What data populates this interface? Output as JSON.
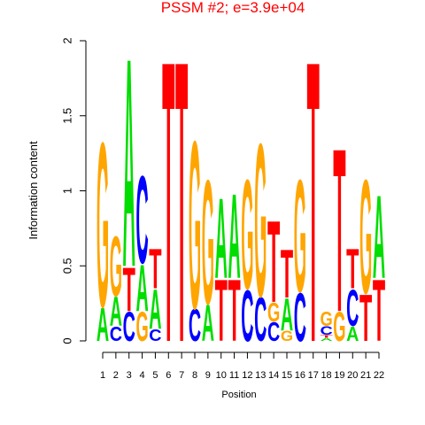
{
  "chart_data": {
    "type": "logo",
    "title": "PSSM #2; e=3.9e+04",
    "x_label": "Position",
    "y_label": "Information content",
    "title_color": "#ff0000",
    "categories": [
      "1",
      "2",
      "3",
      "4",
      "5",
      "6",
      "7",
      "8",
      "9",
      "10",
      "11",
      "12",
      "13",
      "14",
      "15",
      "16",
      "17",
      "18",
      "19",
      "20",
      "21",
      "22"
    ],
    "ylim": [
      0,
      2
    ],
    "yticks": [
      0,
      0.5,
      1,
      1.5,
      2
    ],
    "series": [
      {
        "name": "A",
        "color": "#00dd00",
        "values": [
          0.23,
          0.2,
          1.43,
          0.32,
          0.27,
          0,
          0,
          0,
          0.25,
          0.55,
          0.58,
          0,
          0,
          0,
          0.22,
          0,
          0,
          0.02,
          0,
          0.1,
          0,
          0.57
        ]
      },
      {
        "name": "C",
        "color": "#0000ff",
        "values": [
          0,
          0.1,
          0.2,
          0.6,
          0.08,
          0,
          0,
          0.22,
          0,
          0,
          0,
          0.35,
          0.3,
          0.13,
          0,
          0.33,
          0,
          0.06,
          0,
          0.25,
          0,
          0
        ]
      },
      {
        "name": "G",
        "color": "#ffa500",
        "values": [
          1.13,
          0.41,
          0,
          0.2,
          0,
          0,
          0,
          1.15,
          0.85,
          0,
          0,
          0.75,
          1.05,
          0.13,
          0.07,
          0.77,
          0,
          0.1,
          0.2,
          0,
          0.78,
          0
        ]
      },
      {
        "name": "T",
        "color": "#ff0000",
        "values": [
          0,
          0,
          0.3,
          0,
          0.27,
          1.93,
          1.93,
          0,
          0,
          0.42,
          0.42,
          0,
          0,
          0.56,
          0.33,
          0,
          1.93,
          0.02,
          1.12,
          0.27,
          0.32,
          0.42
        ]
      }
    ]
  }
}
